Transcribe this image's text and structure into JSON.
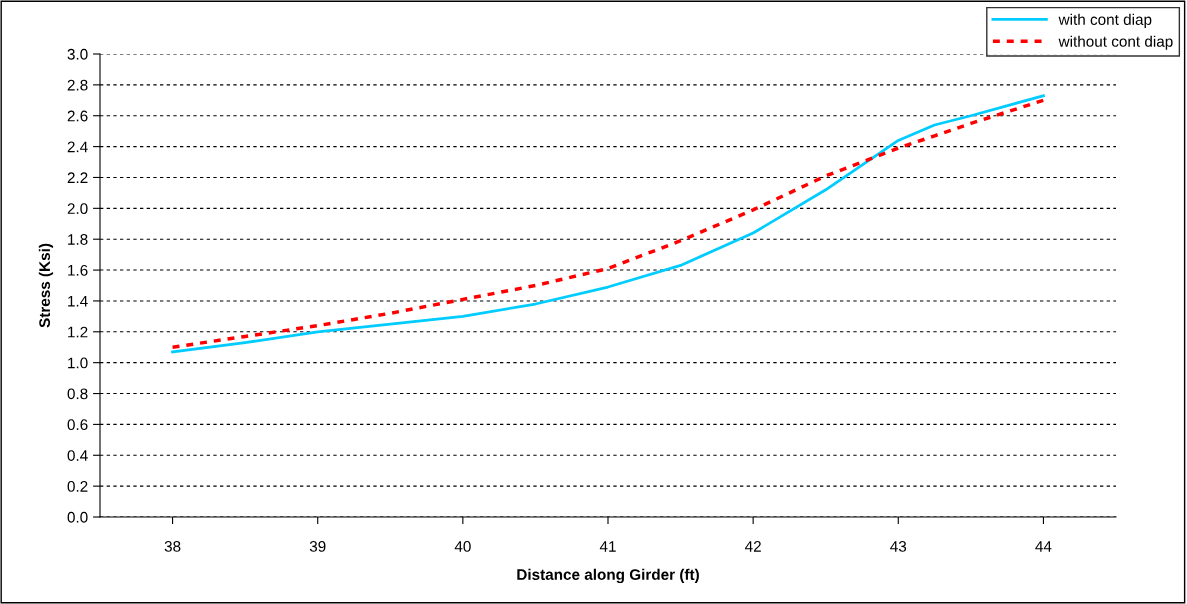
{
  "chart_data": {
    "type": "line",
    "xlabel": "Distance along Girder (ft)",
    "ylabel": "Stress (Ksi)",
    "x": [
      38,
      38.5,
      39,
      39.5,
      40,
      40.5,
      41,
      41.5,
      42,
      42.5,
      43,
      43.25,
      43.5,
      44
    ],
    "series": [
      {
        "name": "with cont diap",
        "color": "#00ccff",
        "line_style": "solid",
        "values": [
          1.07,
          1.13,
          1.2,
          1.25,
          1.3,
          1.38,
          1.49,
          1.63,
          1.84,
          2.12,
          2.44,
          2.54,
          2.6,
          2.73
        ]
      },
      {
        "name": "without cont diap",
        "color": "#ff0000",
        "line_style": "dotted",
        "values": [
          1.1,
          1.17,
          1.24,
          1.32,
          1.41,
          1.5,
          1.61,
          1.79,
          1.99,
          2.21,
          2.39,
          2.47,
          2.55,
          2.7
        ]
      }
    ],
    "xlim": [
      37.5,
      44.5
    ],
    "xticks": [
      38,
      39,
      40,
      41,
      42,
      43,
      44
    ],
    "ylim": [
      0,
      3.0
    ],
    "yticks": [
      {
        "value": 0,
        "label": "0.0"
      },
      0.2,
      0.4,
      0.6,
      0.8,
      {
        "value": 1,
        "label": "1.0"
      },
      1.2,
      1.4,
      1.6,
      1.8,
      {
        "value": 2,
        "label": "2.0"
      },
      2.2,
      2.4,
      2.6,
      2.8,
      {
        "value": 3,
        "label": "3.0"
      }
    ],
    "grid": "y",
    "legend": "top right",
    "marker": "none"
  }
}
